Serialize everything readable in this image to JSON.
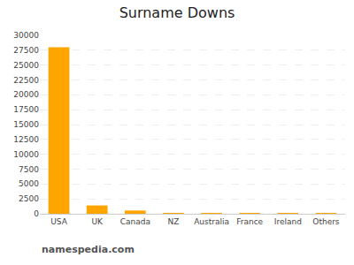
{
  "chart_data": {
    "type": "bar",
    "title": "Surname Downs",
    "categories": [
      "USA",
      "UK",
      "Canada",
      "NZ",
      "Australia",
      "France",
      "Ireland",
      "Others"
    ],
    "values": [
      28000,
      1400,
      550,
      80,
      50,
      25,
      15,
      120
    ],
    "color": "#FFA500",
    "ylim": [
      0,
      30000
    ],
    "yticks": [
      0,
      2500,
      5000,
      7500,
      10000,
      12500,
      15000,
      17500,
      20000,
      22500,
      25000,
      27500,
      30000
    ],
    "grid": true,
    "annotations": [
      "namespedia.com"
    ]
  }
}
